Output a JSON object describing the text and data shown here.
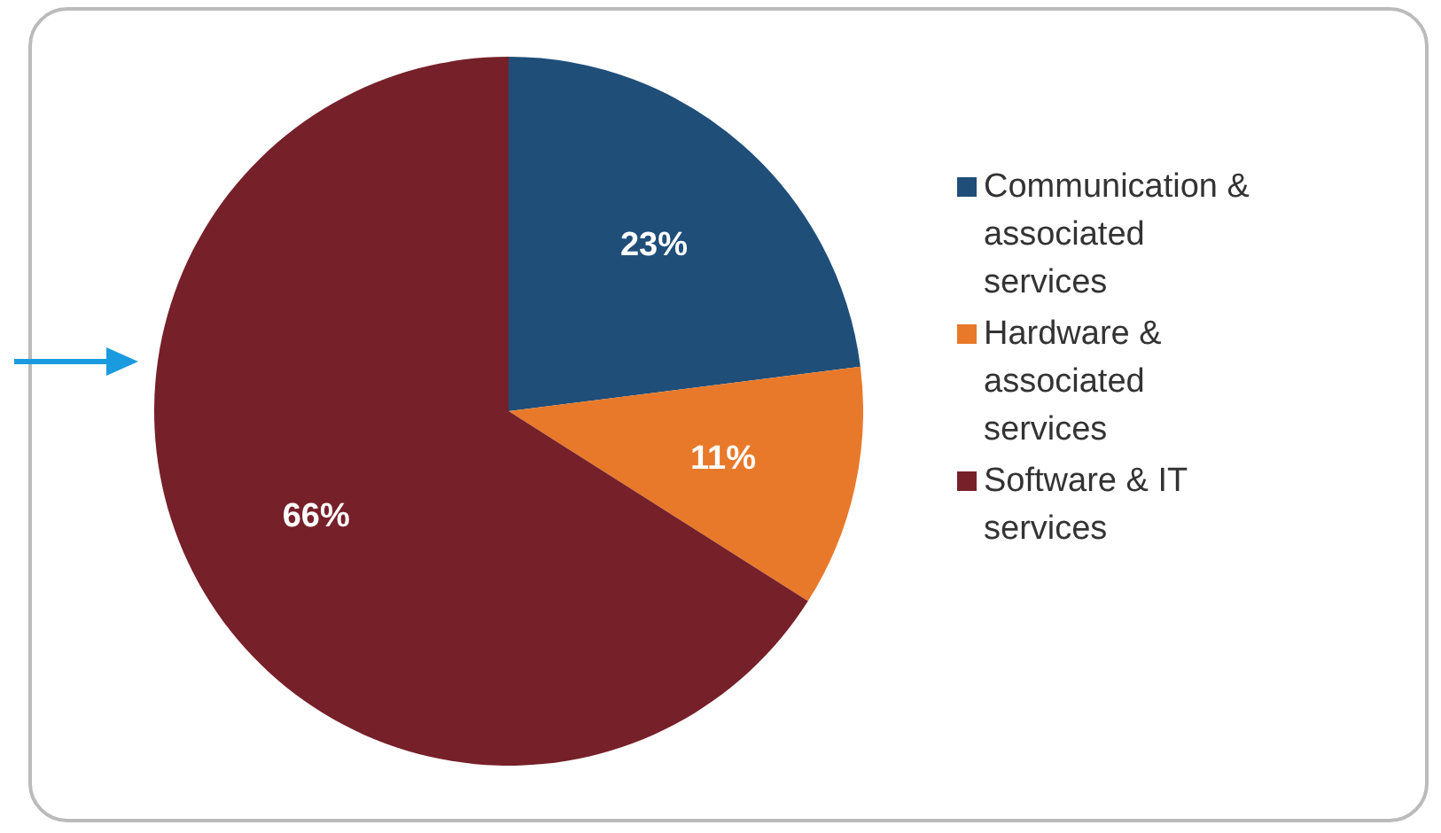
{
  "chart_data": {
    "type": "pie",
    "categories": [
      "Communication & associated services",
      "Hardware & associated services",
      "Software & IT services"
    ],
    "values": [
      23,
      11,
      66
    ],
    "colors": [
      "#1f4e79",
      "#e8792a",
      "#76202a"
    ],
    "value_labels": [
      "23%",
      "11%",
      "66%"
    ],
    "legend": "right"
  }
}
